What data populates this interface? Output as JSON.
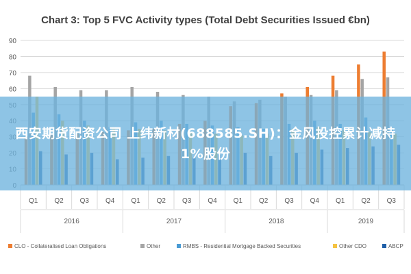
{
  "chart_data": {
    "type": "bar",
    "title": "Chart 3: Top 5 FVC Activity types (Total Debt Securities Issued €bn)",
    "xlabel": "",
    "ylabel": "",
    "ylim": [
      0,
      90
    ],
    "yticks": [
      0,
      10,
      20,
      30,
      40,
      50,
      60,
      70,
      80,
      90
    ],
    "grid": true,
    "legend_position": "bottom",
    "categories": [
      "Q1",
      "Q2",
      "Q3",
      "Q4",
      "Q1",
      "Q2",
      "Q3",
      "Q4",
      "Q1",
      "Q2",
      "Q3",
      "Q4",
      "Q1",
      "Q2",
      "Q3"
    ],
    "groups": [
      {
        "label": "2016",
        "count": 4
      },
      {
        "label": "2017",
        "count": 4
      },
      {
        "label": "2018",
        "count": 4
      },
      {
        "label": "2019",
        "count": 3
      }
    ],
    "series": [
      {
        "name": "CLO - Collateralised Loan Obligations",
        "color": "#ED7D31",
        "values": [
          30,
          31,
          32,
          33,
          34,
          35,
          38,
          40,
          49,
          51,
          57,
          61,
          68,
          75,
          83
        ]
      },
      {
        "name": "Other",
        "color": "#A5A5A5",
        "values": [
          68,
          61,
          59,
          59,
          61,
          58,
          56,
          55,
          52,
          53,
          55,
          56,
          59,
          66,
          67
        ]
      },
      {
        "name": "RMBS - Residential Mortgage Backed Securities",
        "color": "#4A9BD4",
        "values": [
          45,
          44,
          40,
          36,
          39,
          40,
          38,
          37,
          36,
          35,
          38,
          40,
          38,
          42,
          35
        ]
      },
      {
        "name": "Other CDO",
        "color": "#F5C342",
        "values": [
          55,
          40,
          37,
          36,
          35,
          34,
          33,
          32,
          31,
          32,
          35,
          36,
          34,
          33,
          32
        ]
      },
      {
        "name": "ABCP",
        "color": "#1F5FA8",
        "values": [
          21,
          19,
          20,
          16,
          17,
          18,
          17,
          19,
          20,
          18,
          20,
          22,
          23,
          24,
          25
        ]
      }
    ]
  },
  "overlay": {
    "headline": "西安期货配资公司 上纬新材(688585.SH)：金风投控累计减持1%股份"
  }
}
